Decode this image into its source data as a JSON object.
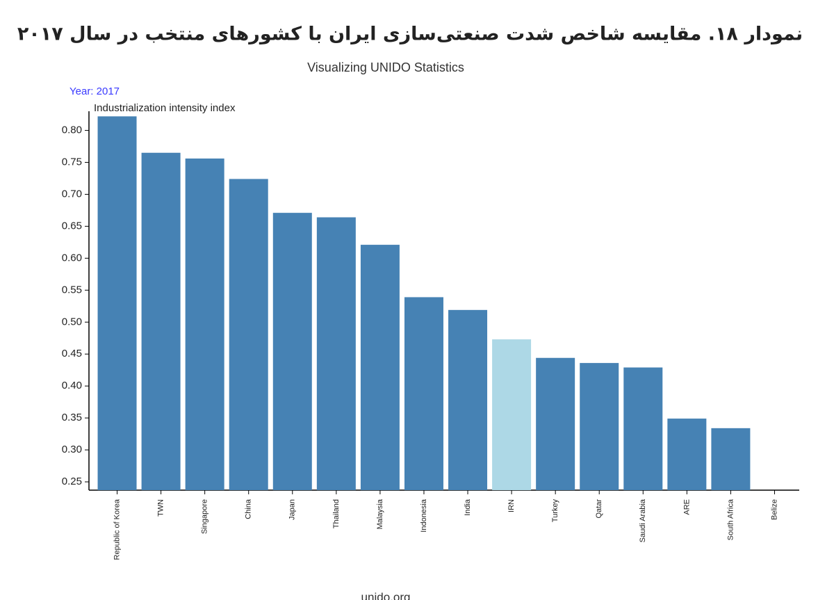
{
  "chart_data": {
    "type": "bar",
    "title": "نمودار ۱۸. مقایسه شاخص شدت صنعتی‌سازی ایران با کشورهای منتخب در سال ۲۰۱۷",
    "subtitle": "Visualizing UNIDO Statistics",
    "annotation": "Year: 2017",
    "y_label": "Industrialization intensity index",
    "source": "unido.org",
    "categories": [
      "Republic of Korea",
      "TWN",
      "Singapore",
      "China",
      "Japan",
      "Thailand",
      "Malaysia",
      "Indonesia",
      "India",
      "IRN",
      "Turkey",
      "Qatar",
      "Saudi Arabia",
      "ARE",
      "South Africa",
      "Belize"
    ],
    "values": [
      0.822,
      0.765,
      0.756,
      0.724,
      0.671,
      0.664,
      0.621,
      0.539,
      0.519,
      0.473,
      0.444,
      0.436,
      0.429,
      0.349,
      0.334,
      null
    ],
    "colors": [
      "#4682b4",
      "#4682b4",
      "#4682b4",
      "#4682b4",
      "#4682b4",
      "#4682b4",
      "#4682b4",
      "#4682b4",
      "#4682b4",
      "#add8e6",
      "#4682b4",
      "#4682b4",
      "#4682b4",
      "#4682b4",
      "#4682b4",
      "#4682b4"
    ],
    "ylim": [
      0.237,
      0.83
    ],
    "yticks": [
      0.25,
      {
        "value": 0.3,
        "label": "0.30"
      },
      0.35,
      {
        "value": 0.4,
        "label": "0.40"
      },
      0.45,
      {
        "value": 0.5,
        "label": "0.50"
      },
      0.55,
      {
        "value": 0.6,
        "label": "0.60"
      },
      0.65,
      {
        "value": 0.7,
        "label": "0.70"
      },
      0.75,
      {
        "value": 0.8,
        "label": "0.80"
      }
    ],
    "grid": false
  }
}
